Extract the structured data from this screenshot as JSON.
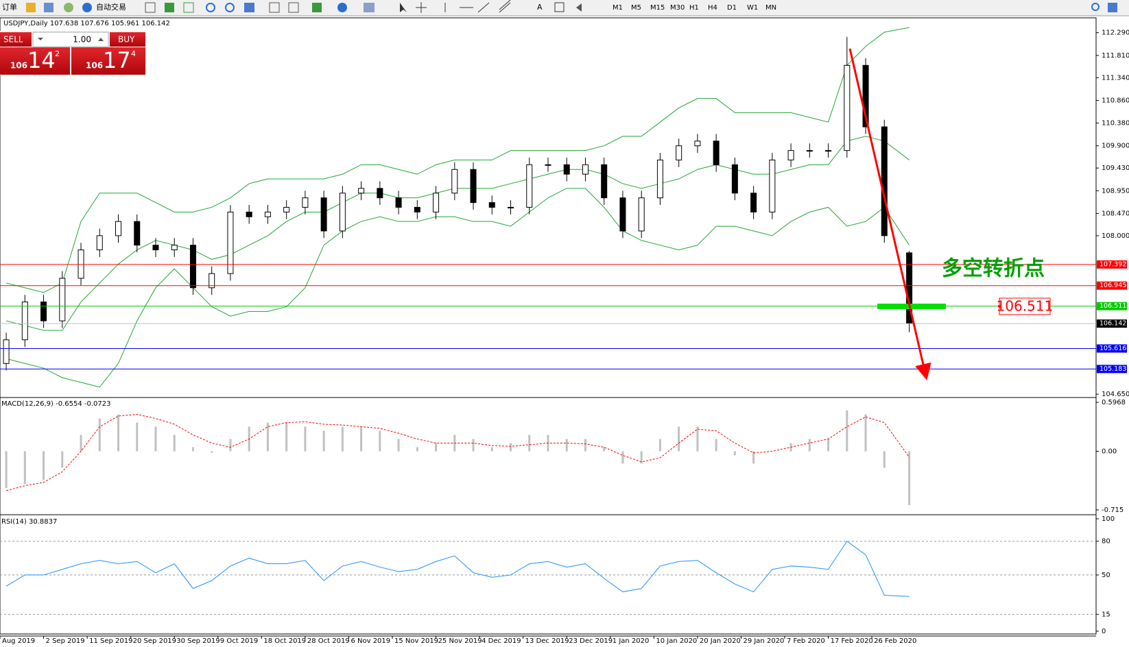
{
  "toolbar": {
    "order": "订单",
    "auto_trading": "自动交易",
    "timeframes": [
      "M1",
      "M5",
      "M15",
      "M30",
      "H1",
      "H4",
      "D1",
      "W1",
      "MN"
    ]
  },
  "trade_panel": {
    "sell": "SELL",
    "buy": "BUY",
    "lot": "1.00",
    "bid_big": "106",
    "bid_mid": "14",
    "bid_sup": "2",
    "ask_big": "106",
    "ask_mid": "17",
    "ask_sup": "4"
  },
  "chart_data": [
    {
      "type": "candlestick",
      "title": "USDJPY,Daily 107.638 107.676 105.961 106.142",
      "x": [
        1,
        4,
        7,
        10,
        13,
        16,
        19,
        22,
        25,
        28,
        31,
        34,
        37,
        40,
        43,
        46,
        49,
        52,
        55,
        58,
        61,
        64,
        67,
        70,
        73,
        76,
        79,
        82,
        85,
        88,
        91,
        94,
        97,
        100,
        103,
        106,
        109,
        112,
        115,
        118,
        121,
        124,
        127,
        130,
        133,
        136,
        139,
        142,
        146
      ],
      "open": [
        105.3,
        105.8,
        106.6,
        106.2,
        107.1,
        107.7,
        108.0,
        108.3,
        107.8,
        107.7,
        107.8,
        106.9,
        107.2,
        108.5,
        108.4,
        108.5,
        108.6,
        108.8,
        108.1,
        108.9,
        109.0,
        108.8,
        108.6,
        108.5,
        108.9,
        109.4,
        108.7,
        108.6,
        108.6,
        109.5,
        109.5,
        109.3,
        109.5,
        108.8,
        108.1,
        108.8,
        109.6,
        109.9,
        110.0,
        109.5,
        108.9,
        108.5,
        109.6,
        109.8,
        109.8,
        109.8,
        111.6,
        110.3,
        107.638
      ],
      "high": [
        105.95,
        106.75,
        106.75,
        107.25,
        107.85,
        108.15,
        108.45,
        108.45,
        107.95,
        107.95,
        107.95,
        107.35,
        108.65,
        108.65,
        108.65,
        108.75,
        108.95,
        108.95,
        109.05,
        109.15,
        109.15,
        108.95,
        108.75,
        109.05,
        109.55,
        109.55,
        108.85,
        108.75,
        109.65,
        109.65,
        109.65,
        109.65,
        109.65,
        108.95,
        108.95,
        109.75,
        110.05,
        110.15,
        110.15,
        109.65,
        109.05,
        109.75,
        109.95,
        109.95,
        109.95,
        112.2,
        111.75,
        110.45,
        107.676
      ],
      "low": [
        105.15,
        105.65,
        106.05,
        106.05,
        106.95,
        107.55,
        107.85,
        107.65,
        107.55,
        107.55,
        106.75,
        106.75,
        107.05,
        108.25,
        108.25,
        108.35,
        108.45,
        107.95,
        107.95,
        108.75,
        108.65,
        108.45,
        108.35,
        108.35,
        108.75,
        108.55,
        108.45,
        108.45,
        108.45,
        109.35,
        109.15,
        109.15,
        108.65,
        107.95,
        107.95,
        108.65,
        109.45,
        109.75,
        109.35,
        108.75,
        108.35,
        108.35,
        109.45,
        109.65,
        109.65,
        109.65,
        110.15,
        107.85,
        105.961
      ],
      "close": [
        105.8,
        106.6,
        106.2,
        107.1,
        107.7,
        108.0,
        108.3,
        107.8,
        107.7,
        107.8,
        106.9,
        107.2,
        108.5,
        108.4,
        108.5,
        108.6,
        108.8,
        108.1,
        108.9,
        109.0,
        108.8,
        108.6,
        108.5,
        108.9,
        109.4,
        108.7,
        108.6,
        108.6,
        109.5,
        109.5,
        109.3,
        109.5,
        108.8,
        108.1,
        108.8,
        109.6,
        109.9,
        110.0,
        109.5,
        108.9,
        108.5,
        109.6,
        109.8,
        109.8,
        109.8,
        111.6,
        110.3,
        108.0,
        106.142
      ],
      "overlays": [
        {
          "color": "#1fa833",
          "values": [
            107.0,
            106.9,
            106.8,
            107.0,
            108.3,
            108.9,
            108.9,
            108.9,
            108.7,
            108.5,
            108.5,
            108.6,
            108.8,
            109.1,
            109.2,
            109.2,
            109.2,
            109.2,
            109.3,
            109.5,
            109.5,
            109.4,
            109.3,
            109.5,
            109.6,
            109.6,
            109.6,
            109.8,
            109.8,
            109.8,
            109.8,
            109.8,
            109.9,
            110.1,
            110.1,
            110.4,
            110.7,
            110.9,
            110.9,
            110.6,
            110.6,
            110.6,
            110.6,
            110.5,
            110.4,
            111.6,
            112.0,
            112.3,
            112.4
          ]
        },
        {
          "color": "#1fa833",
          "values": [
            106.2,
            106.1,
            106.0,
            106.0,
            106.6,
            107.0,
            107.4,
            107.7,
            107.9,
            107.8,
            107.7,
            107.5,
            107.6,
            107.8,
            108.0,
            108.3,
            108.5,
            108.5,
            108.7,
            108.9,
            108.9,
            108.8,
            108.8,
            108.9,
            109.0,
            109.0,
            109.0,
            109.1,
            109.2,
            109.3,
            109.4,
            109.4,
            109.3,
            109.1,
            109.0,
            109.1,
            109.2,
            109.4,
            109.5,
            109.4,
            109.3,
            109.3,
            109.4,
            109.5,
            109.5,
            110.0,
            110.1,
            110.0,
            109.6
          ]
        },
        {
          "color": "#1fa833",
          "values": [
            105.4,
            105.3,
            105.2,
            105.0,
            104.9,
            104.8,
            105.3,
            106.2,
            106.9,
            107.3,
            106.9,
            106.5,
            106.3,
            106.4,
            106.4,
            106.5,
            106.9,
            107.8,
            108.1,
            108.3,
            108.4,
            108.3,
            108.3,
            108.4,
            108.4,
            108.3,
            108.3,
            108.2,
            108.5,
            108.8,
            109.0,
            109.0,
            108.6,
            108.1,
            107.9,
            107.8,
            107.7,
            107.8,
            108.2,
            108.2,
            108.1,
            108.0,
            108.3,
            108.5,
            108.6,
            108.2,
            108.3,
            108.6,
            107.8
          ]
        }
      ],
      "levels": [
        {
          "value": 107.392,
          "color": "#ff0000"
        },
        {
          "value": 106.945,
          "color": "#ff0000"
        },
        {
          "value": 106.511,
          "color": "#00cc00"
        },
        {
          "value": 106.142,
          "color": "#c0c0c0"
        },
        {
          "value": 105.616,
          "color": "#0000ff"
        },
        {
          "value": 105.183,
          "color": "#0000ff"
        }
      ],
      "annotations": [
        {
          "text": "多空转折点",
          "color": "#00a000"
        },
        {
          "text": "106.511",
          "color": "#ff0000"
        }
      ],
      "xlim": [
        0,
        176
      ],
      "ylim": [
        104.58,
        112.59
      ],
      "xticks": [
        {
          "value": 0,
          "label": "Aug 2019"
        },
        {
          "value": 7,
          "label": "2 Sep 2019"
        },
        {
          "value": 14,
          "label": "11 Sep 2019"
        },
        {
          "value": 21,
          "label": "20 Sep 2019"
        },
        {
          "value": 28,
          "label": "30 Sep 2019"
        },
        {
          "value": 35,
          "label": "9 Oct 2019"
        },
        {
          "value": 42,
          "label": "18 Oct 2019"
        },
        {
          "value": 49,
          "label": "28 Oct 2019"
        },
        {
          "value": 56,
          "label": "6 Nov 2019"
        },
        {
          "value": 63,
          "label": "15 Nov 2019"
        },
        {
          "value": 70,
          "label": "25 Nov 2019"
        },
        {
          "value": 77,
          "label": "4 Dec 2019"
        },
        {
          "value": 84,
          "label": "13 Dec 2019"
        },
        {
          "value": 91,
          "label": "23 Dec 2019"
        },
        {
          "value": 98,
          "label": "1 Jan 2020"
        },
        {
          "value": 105,
          "label": "10 Jan 2020"
        },
        {
          "value": 112,
          "label": "20 Jan 2020"
        },
        {
          "value": 119,
          "label": "29 Jan 2020"
        },
        {
          "value": 126,
          "label": "7 Feb 2020"
        },
        {
          "value": 133,
          "label": "17 Feb 2020"
        },
        {
          "value": 140,
          "label": "26 Feb 2020"
        }
      ],
      "yticks": [
        {
          "value": 112.29,
          "label": "112.290"
        },
        {
          "value": 111.81,
          "label": "111.810"
        },
        {
          "value": 111.34,
          "label": "111.340"
        },
        {
          "value": 110.86,
          "label": "110.860"
        },
        {
          "value": 110.38,
          "label": "110.380"
        },
        {
          "value": 109.9,
          "label": "109.900"
        },
        {
          "value": 109.43,
          "label": "109.430"
        },
        {
          "value": 108.95,
          "label": "108.950"
        },
        {
          "value": 108.47,
          "label": "108.470"
        },
        {
          "value": 108.0,
          "label": "108.000"
        },
        {
          "value": 104.65,
          "label": "104.650"
        }
      ]
    },
    {
      "type": "macd",
      "title": "MACD(12,26,9) -0.6554 -0.0723",
      "series": [
        {
          "color": "#c0c0c0",
          "values": [
            -0.45,
            -0.4,
            -0.35,
            -0.2,
            0.2,
            0.4,
            0.45,
            0.35,
            0.3,
            0.2,
            0.05,
            -0.02,
            0.15,
            0.3,
            0.35,
            0.35,
            0.3,
            0.25,
            0.3,
            0.3,
            0.25,
            0.15,
            0.05,
            0.1,
            0.2,
            0.15,
            0.05,
            0.1,
            0.2,
            0.2,
            0.15,
            0.15,
            0.05,
            -0.15,
            -0.15,
            0.15,
            0.3,
            0.3,
            0.15,
            -0.05,
            -0.15,
            0.0,
            0.1,
            0.15,
            0.15,
            0.5,
            0.45,
            -0.2,
            -0.6554
          ]
        },
        {
          "color": "#ff0000",
          "values": [
            -0.48,
            -0.42,
            -0.38,
            -0.25,
            0.0,
            0.3,
            0.43,
            0.45,
            0.4,
            0.33,
            0.2,
            0.1,
            0.05,
            0.15,
            0.3,
            0.35,
            0.36,
            0.33,
            0.32,
            0.3,
            0.28,
            0.22,
            0.15,
            0.1,
            0.1,
            0.1,
            0.07,
            0.06,
            0.08,
            0.1,
            0.1,
            0.09,
            0.05,
            -0.05,
            -0.13,
            -0.08,
            0.1,
            0.27,
            0.25,
            0.1,
            -0.02,
            0.0,
            0.05,
            0.1,
            0.15,
            0.3,
            0.42,
            0.35,
            -0.0723
          ]
        }
      ],
      "ylim": [
        -0.757,
        0.639
      ],
      "yticks": [
        0.5968,
        {
          "value": 0,
          "label": "0.00"
        },
        -0.715
      ]
    },
    {
      "type": "rsi",
      "title": "RSI(14) 30.8837",
      "series": [
        {
          "color": "#1e90ff",
          "values": [
            40,
            50,
            50,
            55,
            60,
            63,
            60,
            62,
            52,
            60,
            38,
            45,
            58,
            65,
            60,
            60,
            63,
            45,
            58,
            62,
            57,
            53,
            55,
            62,
            67,
            52,
            48,
            50,
            60,
            62,
            57,
            60,
            47,
            35,
            38,
            58,
            62,
            63,
            52,
            42,
            35,
            55,
            58,
            57,
            55,
            80,
            68,
            32,
            30.8837
          ]
        }
      ],
      "levels": [
        80,
        50,
        15
      ],
      "ylim": [
        -3.7,
        102.4
      ],
      "yticks": [
        100,
        80,
        50,
        15,
        0
      ]
    }
  ]
}
